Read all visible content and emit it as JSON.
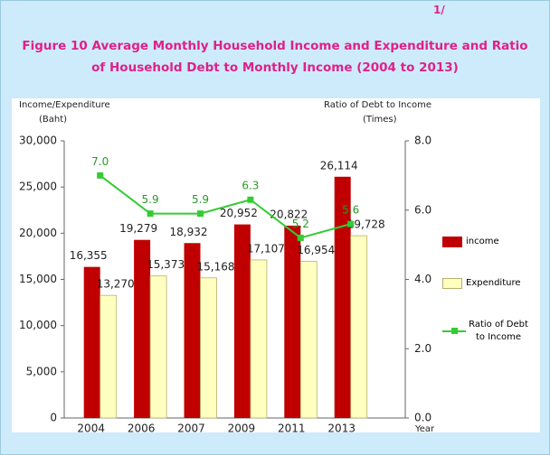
{
  "chart_data": {
    "type": "bar",
    "note": "1/",
    "title": "Figure  10   Average Monthly Household Income and Expenditure and Ratio of  Household Debt to Monthly Income  (2004 to 2013)",
    "ylabel": "Income/Expenditure",
    "yunit": "(Baht)",
    "y2label": "Ratio of Debt to Income",
    "y2unit": "(Times)",
    "xlabel": "Year",
    "categories": [
      "2004",
      "2006",
      "2007",
      "2009",
      "2011",
      "2013"
    ],
    "series": [
      {
        "name": "income",
        "type": "bar",
        "color": "#c00000",
        "values": [
          16355,
          19279,
          18932,
          20952,
          20822,
          26114
        ],
        "value_labels": [
          "16,355",
          "19,279",
          "18,932",
          "20,952",
          "20,822",
          "26,114"
        ]
      },
      {
        "name": "Expenditure",
        "type": "bar",
        "color": "#ffffc0",
        "values": [
          13270,
          15373,
          15168,
          17107,
          16954,
          19728
        ],
        "value_labels": [
          "13,270",
          "15,373",
          "15,168",
          "17,107",
          "16,954",
          "19,728"
        ]
      },
      {
        "name": "Ratio of Debt to Income",
        "type": "line",
        "axis": "y2",
        "color": "#33cc33",
        "values": [
          7.0,
          5.9,
          5.9,
          6.3,
          5.2,
          5.6
        ],
        "value_labels": [
          "7.0",
          "5.9",
          "5.9",
          "6.3",
          "5.2",
          "5.6"
        ]
      }
    ],
    "ylim": [
      0,
      30000
    ],
    "yticks": [
      0,
      {
        "value": 5000,
        "label": "5,000"
      },
      {
        "value": 10000,
        "label": "10,000"
      },
      {
        "value": 15000,
        "label": "15,000"
      },
      {
        "value": 20000,
        "label": "20,000"
      },
      {
        "value": 25000,
        "label": "25,000"
      },
      {
        "value": 30000,
        "label": "30,000"
      }
    ],
    "y2lim": [
      0,
      8
    ],
    "y2ticks": [
      {
        "value": 0,
        "label": "0.0"
      },
      {
        "value": 2,
        "label": "2.0"
      },
      {
        "value": 4,
        "label": "4.0"
      },
      {
        "value": 6,
        "label": "6.0"
      },
      {
        "value": 8,
        "label": "8.0"
      }
    ],
    "grid": false
  }
}
